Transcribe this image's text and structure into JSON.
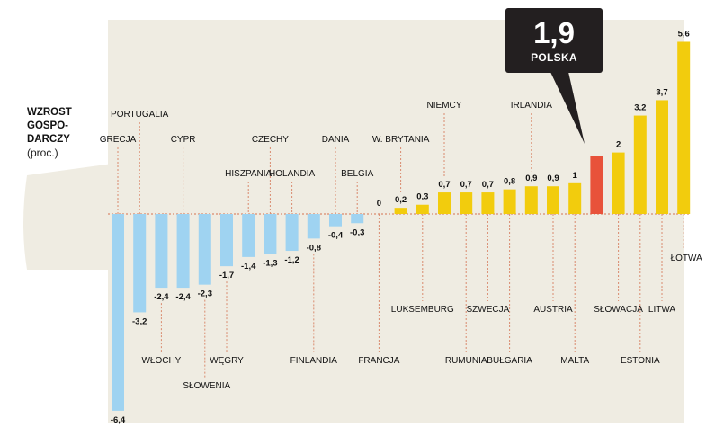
{
  "side_title": {
    "lines": [
      "WZROST",
      "GOSPO-",
      "DARCZY"
    ],
    "subtitle": "(proc.)"
  },
  "callout": {
    "value": "1,9",
    "label": "POLSKA"
  },
  "colors": {
    "negative": "#9fd3f1",
    "positive": "#f2cc0d",
    "highlight": "#e8523a",
    "panel": "#efece2",
    "zero_line": "#d98a6e",
    "leader": "#d98a6e"
  },
  "chart_data": {
    "type": "bar",
    "title": "WZROST GOSPODARCZY (proc.)",
    "xlabel": "",
    "ylabel": "",
    "ylim": [
      -6.4,
      5.6
    ],
    "grid": false,
    "highlight_category": "POLSKA",
    "categories": [
      "GRECJA",
      "PORTUGALIA",
      "WŁOCHY",
      "CYPR",
      "SŁOWENIA",
      "WĘGRY",
      "HISZPANIA",
      "CZECHY",
      "HOLANDIA",
      "FINLANDIA",
      "DANIA",
      "BELGIA",
      "FRANCJA",
      "W. BRYTANIA",
      "LUKSEMBURG",
      "NIEMCY",
      "RUMUNIA",
      "SZWECJA",
      "BUŁGARIA",
      "IRLANDIA",
      "AUSTRIA",
      "MALTA",
      "POLSKA",
      "SŁOWACJA",
      "ESTONIA",
      "LITWA",
      "ŁOTWA"
    ],
    "values": [
      -6.4,
      -3.2,
      -2.4,
      -2.4,
      -2.3,
      -1.7,
      -1.4,
      -1.3,
      -1.2,
      -0.8,
      -0.4,
      -0.3,
      0,
      0.2,
      0.3,
      0.7,
      0.7,
      0.7,
      0.8,
      0.9,
      0.9,
      1,
      1.9,
      2,
      3.2,
      3.7,
      5.6
    ],
    "value_labels": [
      "-6,4",
      "-3,2",
      "-2,4",
      "-2,4",
      "-2,3",
      "-1,7",
      "-1,4",
      "-1,3",
      "-1,2",
      "-0,8",
      "-0,4",
      "-0,3",
      "0",
      "0,2",
      "0,3",
      "0,7",
      "0,7",
      "0,7",
      "0,8",
      "0,9",
      "0,9",
      "1",
      "",
      "2",
      "3,2",
      "3,7",
      "5,6"
    ]
  }
}
